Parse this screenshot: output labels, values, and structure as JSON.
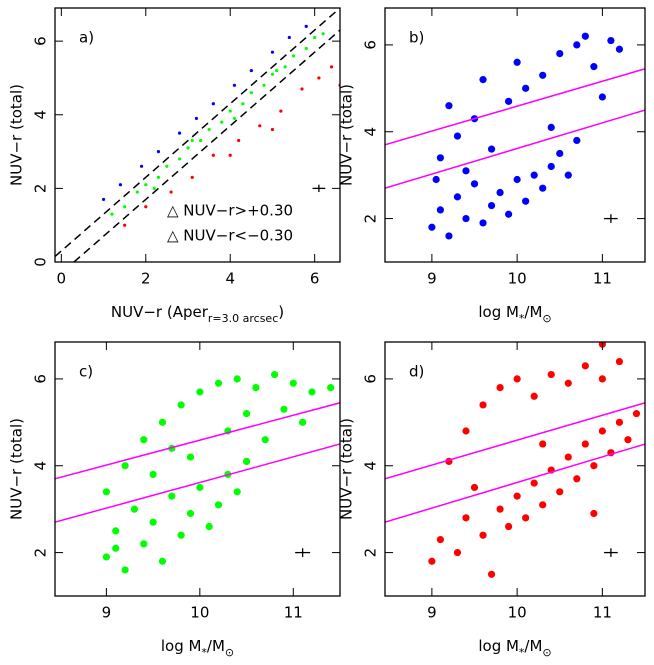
{
  "chart_data": [
    {
      "type": "scatter",
      "panel_label": "a)",
      "ylabel": "NUV−r (total)",
      "xlabel": [
        {
          "text": "NUV−r (Aper"
        },
        {
          "text": "r=3.0 arcsec",
          "sub": true
        },
        {
          "text": ")"
        }
      ],
      "xlim": [
        -0.15,
        6.6
      ],
      "ylim": [
        0,
        6.9
      ],
      "xticks": [
        0,
        2,
        4,
        6
      ],
      "yticks": [
        0,
        2,
        4,
        6
      ],
      "lines": [
        {
          "color": "#000000",
          "dash": true,
          "x": [
            -0.15,
            6.6
          ],
          "values": [
            0.15,
            6.9
          ]
        },
        {
          "color": "#000000",
          "dash": true,
          "x": [
            0.3,
            6.6
          ],
          "values": [
            0,
            6.3
          ]
        }
      ],
      "series": [
        {
          "name": "△ NUV−r>+0.30",
          "color": "#ff0000",
          "x": [
            1.5,
            2.0,
            2.6,
            3.1,
            3.6,
            4.2,
            4.7,
            5.2,
            5.7,
            6.1,
            6.4,
            6.6,
            4.0,
            5.0
          ],
          "values": [
            1.0,
            1.5,
            1.9,
            2.3,
            2.9,
            3.3,
            3.7,
            4.1,
            4.7,
            5.0,
            5.3,
            4.8,
            2.9,
            3.6
          ]
        },
        {
          "name": "△ NUV−r<−0.30",
          "color": "#0000ff",
          "x": [
            1.0,
            1.4,
            1.9,
            2.3,
            2.8,
            3.2,
            3.6,
            4.1,
            4.5,
            5.0,
            5.4,
            5.8
          ],
          "values": [
            1.7,
            2.1,
            2.6,
            3.0,
            3.5,
            3.9,
            4.3,
            4.8,
            5.2,
            5.7,
            6.1,
            6.4
          ]
        },
        {
          "color": "#00ff00",
          "x": [
            1.2,
            1.5,
            1.8,
            2.0,
            2.3,
            2.5,
            2.8,
            3.0,
            3.3,
            3.5,
            3.8,
            4.0,
            4.3,
            4.5,
            4.8,
            5.0,
            5.3,
            5.5,
            5.8,
            6.0,
            6.2,
            2.2,
            3.1,
            4.1,
            5.1
          ],
          "values": [
            1.3,
            1.5,
            1.9,
            2.1,
            2.3,
            2.6,
            2.8,
            3.1,
            3.3,
            3.6,
            3.8,
            4.1,
            4.3,
            4.6,
            4.8,
            5.1,
            5.3,
            5.6,
            5.8,
            6.1,
            6.2,
            2.0,
            3.3,
            3.9,
            5.2
          ]
        }
      ],
      "error_bar": {
        "x": 6.1,
        "y": 2.0,
        "xerr": 0.15,
        "yerr": 0.1
      }
    },
    {
      "type": "scatter",
      "panel_label": "b)",
      "ylabel": "NUV−r (total)",
      "xlabel": [
        {
          "text": "log M"
        },
        {
          "text": "*",
          "sub": true
        },
        {
          "text": "/M"
        },
        {
          "text": "⊙",
          "sub": true
        }
      ],
      "xlim": [
        8.45,
        11.5
      ],
      "ylim": [
        1,
        6.85
      ],
      "xticks": [
        9,
        10,
        11
      ],
      "yticks": [
        2,
        4,
        6
      ],
      "lines": [
        {
          "color": "#ff00ff",
          "x": [
            8.45,
            11.5
          ],
          "values": [
            3.7,
            5.45
          ]
        },
        {
          "color": "#ff00ff",
          "x": [
            8.45,
            11.5
          ],
          "values": [
            2.7,
            4.5
          ]
        }
      ],
      "series": [
        {
          "color": "#0000ff",
          "x": [
            9.0,
            9.1,
            9.2,
            9.3,
            9.4,
            9.5,
            9.6,
            9.7,
            9.8,
            9.9,
            10.0,
            10.1,
            10.2,
            10.3,
            10.4,
            10.5,
            10.6,
            10.7,
            9.1,
            9.3,
            9.5,
            9.7,
            9.9,
            10.1,
            10.3,
            10.5,
            10.7,
            10.9,
            11.0,
            11.2,
            10.8,
            9.2,
            9.6,
            10.0,
            10.4,
            11.1,
            9.05,
            9.4
          ],
          "values": [
            1.8,
            2.2,
            1.6,
            2.5,
            2.0,
            2.8,
            1.9,
            2.3,
            2.6,
            2.1,
            2.9,
            2.4,
            3.0,
            2.7,
            3.2,
            3.5,
            3.0,
            3.8,
            3.4,
            3.9,
            4.3,
            3.6,
            4.7,
            5.0,
            5.3,
            5.8,
            6.0,
            5.5,
            4.8,
            5.9,
            6.2,
            4.6,
            5.2,
            5.6,
            4.1,
            6.1,
            2.9,
            3.1
          ]
        }
      ],
      "error_bar": {
        "x": 11.1,
        "y": 2.0,
        "xerr": 0.08,
        "yerr": 0.1
      }
    },
    {
      "type": "scatter",
      "panel_label": "c)",
      "ylabel": "NUV−r (total)",
      "xlabel": [
        {
          "text": "log M"
        },
        {
          "text": "*",
          "sub": true
        },
        {
          "text": "/M"
        },
        {
          "text": "⊙",
          "sub": true
        }
      ],
      "xlim": [
        8.45,
        11.5
      ],
      "ylim": [
        1,
        6.85
      ],
      "xticks": [
        9,
        10,
        11
      ],
      "yticks": [
        2,
        4,
        6
      ],
      "lines": [
        {
          "color": "#ff00ff",
          "x": [
            8.45,
            11.5
          ],
          "values": [
            3.7,
            5.45
          ]
        },
        {
          "color": "#ff00ff",
          "x": [
            8.45,
            11.5
          ],
          "values": [
            2.7,
            4.5
          ]
        }
      ],
      "series": [
        {
          "color": "#00ff00",
          "x": [
            9.0,
            9.1,
            9.2,
            9.3,
            9.4,
            9.5,
            9.6,
            9.7,
            9.8,
            9.9,
            10.0,
            10.1,
            10.2,
            10.3,
            10.4,
            10.5,
            9.0,
            9.2,
            9.4,
            9.6,
            9.8,
            10.0,
            10.2,
            10.4,
            10.6,
            10.8,
            11.0,
            11.2,
            11.4,
            10.5,
            10.9,
            11.1,
            9.7,
            10.3,
            10.7,
            9.1,
            9.5,
            9.9
          ],
          "values": [
            1.9,
            2.5,
            1.6,
            3.0,
            2.2,
            2.7,
            1.8,
            3.3,
            2.4,
            2.9,
            3.5,
            2.6,
            3.1,
            3.8,
            3.4,
            4.1,
            3.4,
            4.0,
            4.6,
            5.0,
            5.4,
            5.7,
            5.9,
            6.0,
            5.8,
            6.1,
            5.9,
            5.7,
            5.8,
            5.2,
            5.3,
            5.0,
            4.4,
            4.8,
            4.6,
            2.1,
            3.8,
            4.2
          ]
        }
      ],
      "error_bar": {
        "x": 11.1,
        "y": 2.0,
        "xerr": 0.08,
        "yerr": 0.1
      }
    },
    {
      "type": "scatter",
      "panel_label": "d)",
      "ylabel": "NUV−r (total)",
      "xlabel": [
        {
          "text": "log M"
        },
        {
          "text": "*",
          "sub": true
        },
        {
          "text": "/M"
        },
        {
          "text": "⊙",
          "sub": true
        }
      ],
      "xlim": [
        8.45,
        11.5
      ],
      "ylim": [
        1,
        6.85
      ],
      "xticks": [
        9,
        10,
        11
      ],
      "yticks": [
        2,
        4,
        6
      ],
      "lines": [
        {
          "color": "#ff00ff",
          "x": [
            8.45,
            11.5
          ],
          "values": [
            3.7,
            5.45
          ]
        },
        {
          "color": "#ff00ff",
          "x": [
            8.45,
            11.5
          ],
          "values": [
            2.7,
            4.5
          ]
        }
      ],
      "series": [
        {
          "color": "#ff0000",
          "x": [
            9.0,
            9.1,
            9.3,
            9.4,
            9.6,
            9.8,
            9.9,
            10.0,
            10.1,
            10.2,
            10.3,
            10.4,
            10.5,
            10.6,
            10.7,
            10.8,
            10.9,
            11.0,
            11.1,
            11.2,
            11.3,
            11.4,
            9.2,
            9.4,
            9.6,
            9.8,
            10.0,
            10.2,
            10.4,
            10.6,
            10.8,
            11.0,
            11.2,
            11.0,
            10.3,
            9.7,
            9.5,
            10.9
          ],
          "values": [
            1.8,
            2.3,
            2.0,
            2.8,
            2.4,
            3.0,
            2.6,
            3.3,
            2.8,
            3.6,
            3.1,
            3.9,
            3.4,
            4.2,
            3.7,
            4.5,
            4.0,
            4.8,
            4.3,
            5.0,
            4.6,
            5.2,
            4.1,
            4.8,
            5.4,
            5.8,
            6.0,
            5.6,
            6.1,
            5.9,
            6.3,
            6.0,
            6.4,
            6.8,
            4.5,
            1.5,
            3.5,
            2.9
          ]
        }
      ],
      "error_bar": {
        "x": 11.1,
        "y": 2.0,
        "xerr": 0.08,
        "yerr": 0.1
      }
    }
  ]
}
